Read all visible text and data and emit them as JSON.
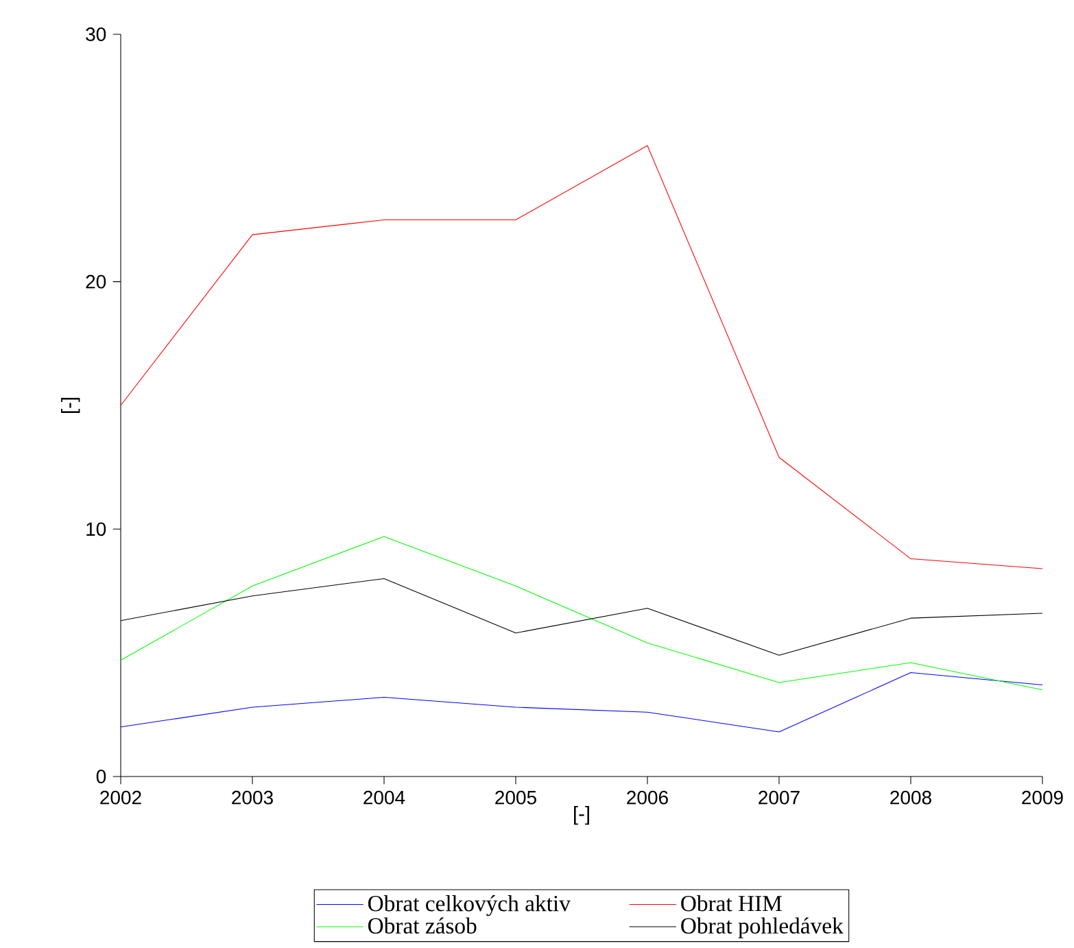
{
  "chart_data": {
    "type": "line",
    "xlabel": "[-]",
    "ylabel": "[-]",
    "x": [
      2002,
      2003,
      2004,
      2005,
      2006,
      2007,
      2008,
      2009
    ],
    "xlim": [
      2002,
      2009
    ],
    "xticks": [
      2002,
      2003,
      2004,
      2005,
      2006,
      2007,
      2008,
      2009
    ],
    "ylim": [
      0,
      30
    ],
    "yticks": [
      0,
      10,
      20,
      30
    ],
    "legend": "bottom",
    "series": [
      {
        "name": "Obrat celkových aktiv",
        "color": "#0000ff",
        "values": [
          2.0,
          2.8,
          3.2,
          2.8,
          2.6,
          1.8,
          4.2,
          3.7
        ]
      },
      {
        "name": "Obrat HIM",
        "color": "#ff0000",
        "values": [
          15.0,
          21.9,
          22.5,
          22.5,
          25.5,
          12.9,
          8.8,
          8.4
        ]
      },
      {
        "name": "Obrat zásob",
        "color": "#00ff00",
        "values": [
          4.7,
          7.7,
          9.7,
          7.7,
          5.4,
          3.8,
          4.6,
          3.5
        ]
      },
      {
        "name": "Obrat pohledávek",
        "color": "#000000",
        "values": [
          6.3,
          7.3,
          8.0,
          5.8,
          6.8,
          4.9,
          6.4,
          6.6
        ]
      }
    ]
  }
}
